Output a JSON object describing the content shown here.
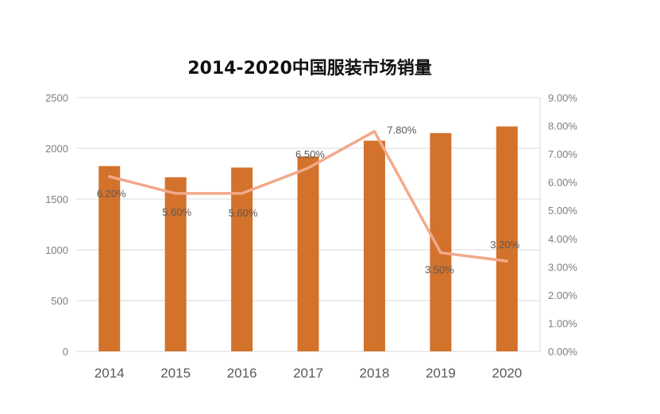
{
  "chart_data": {
    "type": "bar",
    "title": "2014-2020中国服装市场销量",
    "categories": [
      "2014",
      "2015",
      "2016",
      "2017",
      "2018",
      "2019",
      "2020"
    ],
    "series": [
      {
        "type": "bar",
        "axis": "left",
        "color": "#d2722b",
        "values": [
          1825,
          1715,
          1810,
          1920,
          2075,
          2150,
          2215
        ]
      },
      {
        "type": "line",
        "axis": "right",
        "color": "#f2a98a",
        "values": [
          0.062,
          0.056,
          0.056,
          0.065,
          0.078,
          0.035,
          0.032
        ],
        "data_labels": [
          "6.20%",
          "5.60%",
          "5.60%",
          "6.50%",
          "7.80%",
          "3.50%",
          "3.20%"
        ]
      }
    ],
    "y_left": {
      "min": 0,
      "max": 2500,
      "ticks": [
        "0",
        "500",
        "1000",
        "1500",
        "2000",
        "2500"
      ]
    },
    "y_right": {
      "min": 0,
      "max": 0.09,
      "ticks": [
        "0.00%",
        "1.00%",
        "2.00%",
        "3.00%",
        "4.00%",
        "5.00%",
        "6.00%",
        "7.00%",
        "8.00%",
        "9.00%"
      ]
    },
    "grid": true,
    "legend": "none"
  }
}
